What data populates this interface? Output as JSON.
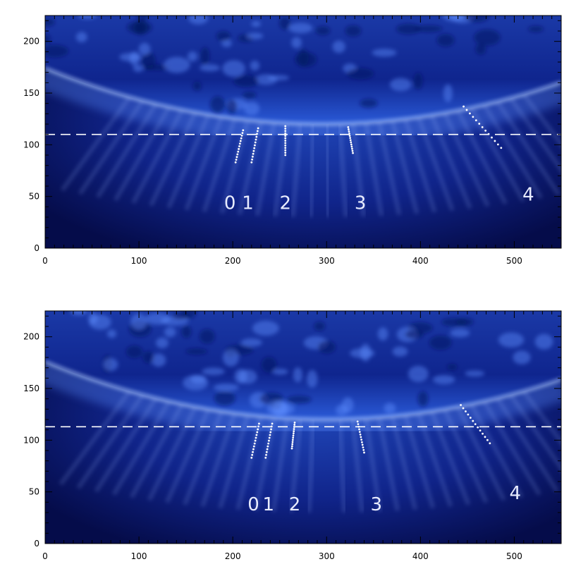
{
  "chart_data": [
    {
      "type": "image",
      "xlim": [
        0,
        550
      ],
      "ylim": [
        0,
        225
      ],
      "x_ticks": [
        0,
        100,
        200,
        300,
        400,
        500
      ],
      "y_ticks": [
        0,
        50,
        100,
        150,
        200
      ],
      "limb": {
        "center_x": 295,
        "bottom_y": 120,
        "curvature": 0.00062
      },
      "reference_line_y": 110,
      "plumes": [
        {
          "label": "0",
          "label_x": 197,
          "label_y": 38,
          "from": [
            203,
            83
          ],
          "to": [
            211,
            114
          ]
        },
        {
          "label": "1",
          "label_x": 216,
          "label_y": 38,
          "from": [
            220,
            83
          ],
          "to": [
            227,
            116
          ]
        },
        {
          "label": "2",
          "label_x": 256,
          "label_y": 38,
          "from": [
            256,
            90
          ],
          "to": [
            256,
            118
          ]
        },
        {
          "label": "3",
          "label_x": 336,
          "label_y": 38,
          "from": [
            328,
            92
          ],
          "to": [
            323,
            117
          ]
        },
        {
          "label": "4",
          "label_x": 515,
          "label_y": 46,
          "from": [
            486,
            97
          ],
          "to": [
            446,
            137
          ]
        }
      ]
    },
    {
      "type": "image",
      "xlim": [
        0,
        550
      ],
      "ylim": [
        0,
        225
      ],
      "x_ticks": [
        0,
        100,
        200,
        300,
        400,
        500
      ],
      "y_ticks": [
        0,
        50,
        100,
        150,
        200
      ],
      "limb": {
        "center_x": 300,
        "bottom_y": 120,
        "curvature": 0.00062
      },
      "reference_line_y": 113,
      "plumes": [
        {
          "label": "0",
          "label_x": 222,
          "label_y": 32,
          "from": [
            220,
            83
          ],
          "to": [
            228,
            116
          ]
        },
        {
          "label": "1",
          "label_x": 238,
          "label_y": 32,
          "from": [
            235,
            83
          ],
          "to": [
            242,
            116
          ]
        },
        {
          "label": "2",
          "label_x": 266,
          "label_y": 32,
          "from": [
            263,
            92
          ],
          "to": [
            266,
            117
          ]
        },
        {
          "label": "3",
          "label_x": 353,
          "label_y": 32,
          "from": [
            340,
            88
          ],
          "to": [
            333,
            118
          ]
        },
        {
          "label": "4",
          "label_x": 501,
          "label_y": 43,
          "from": [
            474,
            97
          ],
          "to": [
            443,
            134
          ]
        }
      ]
    }
  ]
}
